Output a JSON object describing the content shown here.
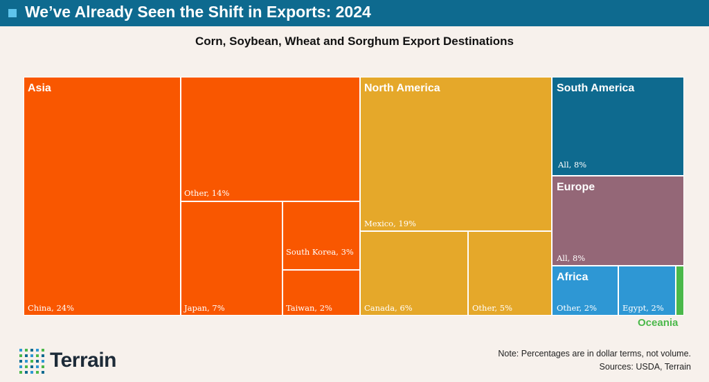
{
  "header": {
    "title": "We’ve Already Seen the Shift in Exports: 2024"
  },
  "chart_data": {
    "type": "treemap",
    "title": "Corn, Soybean, Wheat and Sorghum Export Destinations",
    "unit": "% of export value (dollar terms)",
    "regions": [
      {
        "name": "Asia",
        "color": "#f95700",
        "items": [
          {
            "label": "China, 24%",
            "value": 24
          },
          {
            "label": "Other, 14%",
            "value": 14
          },
          {
            "label": "Japan, 7%",
            "value": 7
          },
          {
            "label": "South Korea, 3%",
            "value": 3
          },
          {
            "label": "Taiwan, 2%",
            "value": 2
          }
        ]
      },
      {
        "name": "North America",
        "color": "#e5a82a",
        "items": [
          {
            "label": "Mexico, 19%",
            "value": 19
          },
          {
            "label": "Canada, 6%",
            "value": 6
          },
          {
            "label": "Other, 5%",
            "value": 5
          }
        ]
      },
      {
        "name": "South America",
        "color": "#0e6a8f",
        "items": [
          {
            "label": "All, 8%",
            "value": 8
          }
        ]
      },
      {
        "name": "Europe",
        "color": "#946777",
        "items": [
          {
            "label": "All, 8%",
            "value": 8
          }
        ]
      },
      {
        "name": "Africa",
        "color": "#2e97d4",
        "items": [
          {
            "label": "Other, 2%",
            "value": 2
          },
          {
            "label": "Egypt, 2%",
            "value": 2
          }
        ]
      },
      {
        "name": "Oceania",
        "color": "#4bb84a",
        "items": [
          {
            "label": "",
            "value": 0.5
          }
        ]
      }
    ]
  },
  "footer": {
    "logo_text": "Terrain",
    "note": "Note: Percentages are in dollar terms, not volume.",
    "sources": "Sources: USDA, Terrain"
  }
}
